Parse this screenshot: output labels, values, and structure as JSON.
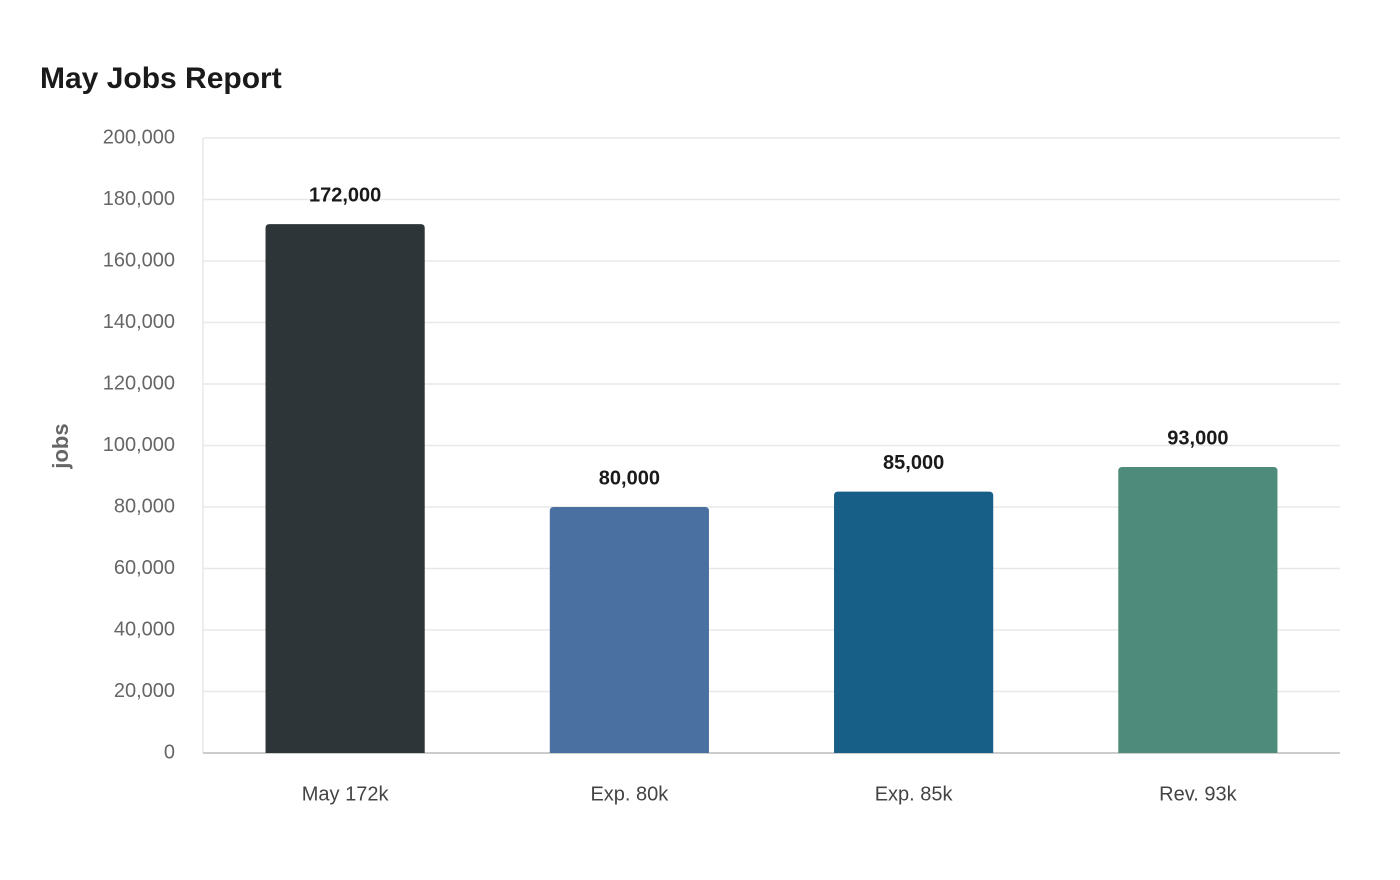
{
  "chart_data": {
    "type": "bar",
    "title": "May Jobs Report",
    "y_label": "jobs",
    "categories": [
      "May 172k",
      "Exp. 80k",
      "Exp. 85k",
      "Rev. 93k"
    ],
    "values": [
      172000,
      80000,
      85000,
      93000
    ],
    "value_labels": [
      "172,000",
      "80,000",
      "85,000",
      "93,000"
    ],
    "colors": [
      "#2d3538",
      "#4a6fa1",
      "#175f86",
      "#4e8b7a"
    ],
    "ylim": [
      0,
      200000
    ],
    "yticks": [
      0,
      {
        "value": 20000,
        "label": "20,000"
      },
      {
        "value": 40000,
        "label": "40,000"
      },
      {
        "value": 60000,
        "label": "60,000"
      },
      {
        "value": 80000,
        "label": "80,000"
      },
      {
        "value": 100000,
        "label": "100,000"
      },
      {
        "value": 120000,
        "label": "120,000"
      },
      {
        "value": 140000,
        "label": "140,000"
      },
      {
        "value": 160000,
        "label": "160,000"
      },
      {
        "value": 180000,
        "label": "180,000"
      },
      {
        "value": 200000,
        "label": "200,000"
      }
    ],
    "grid": true
  }
}
